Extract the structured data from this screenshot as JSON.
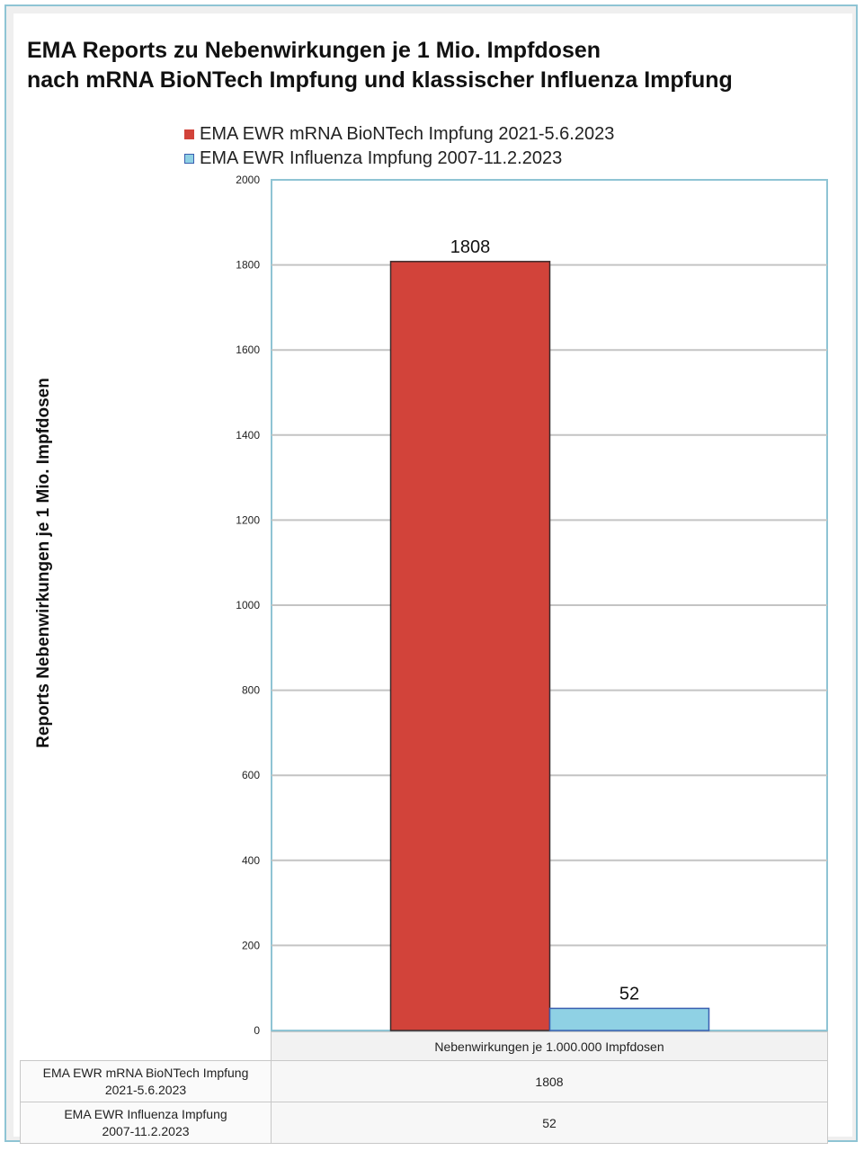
{
  "chart_data": {
    "type": "bar",
    "title_lines": [
      "EMA Reports zu Nebenwirkungen je 1 Mio. Impfdosen",
      "nach mRNA BioNTech Impfung und klassischer Influenza Impfung"
    ],
    "ylabel": "Reports Nebenwirkungen je 1 Mio. Impfdosen",
    "ylim": [
      0,
      2000
    ],
    "yticks": [
      0,
      200,
      400,
      600,
      800,
      1000,
      1200,
      1400,
      1600,
      1800,
      2000
    ],
    "categories": [
      "Nebenwirkungen je 1.000.000 Impfdosen"
    ],
    "grid": true,
    "legend_position": "top",
    "series": [
      {
        "name": "EMA EWR mRNA BioNTech Impfung 2021-5.6.2023",
        "table_label_lines": [
          "EMA EWR mRNA BioNTech Impfung",
          "2021-5.6.2023"
        ],
        "values": [
          1808
        ],
        "value_labels": [
          "1808"
        ],
        "color": "#d2433a"
      },
      {
        "name": "EMA EWR Influenza Impfung 2007-11.2.2023",
        "table_label_lines": [
          "EMA EWR Influenza Impfung",
          "2007-11.2.2023"
        ],
        "values": [
          52
        ],
        "value_labels": [
          "52"
        ],
        "color": "#8fd1e4"
      }
    ]
  }
}
